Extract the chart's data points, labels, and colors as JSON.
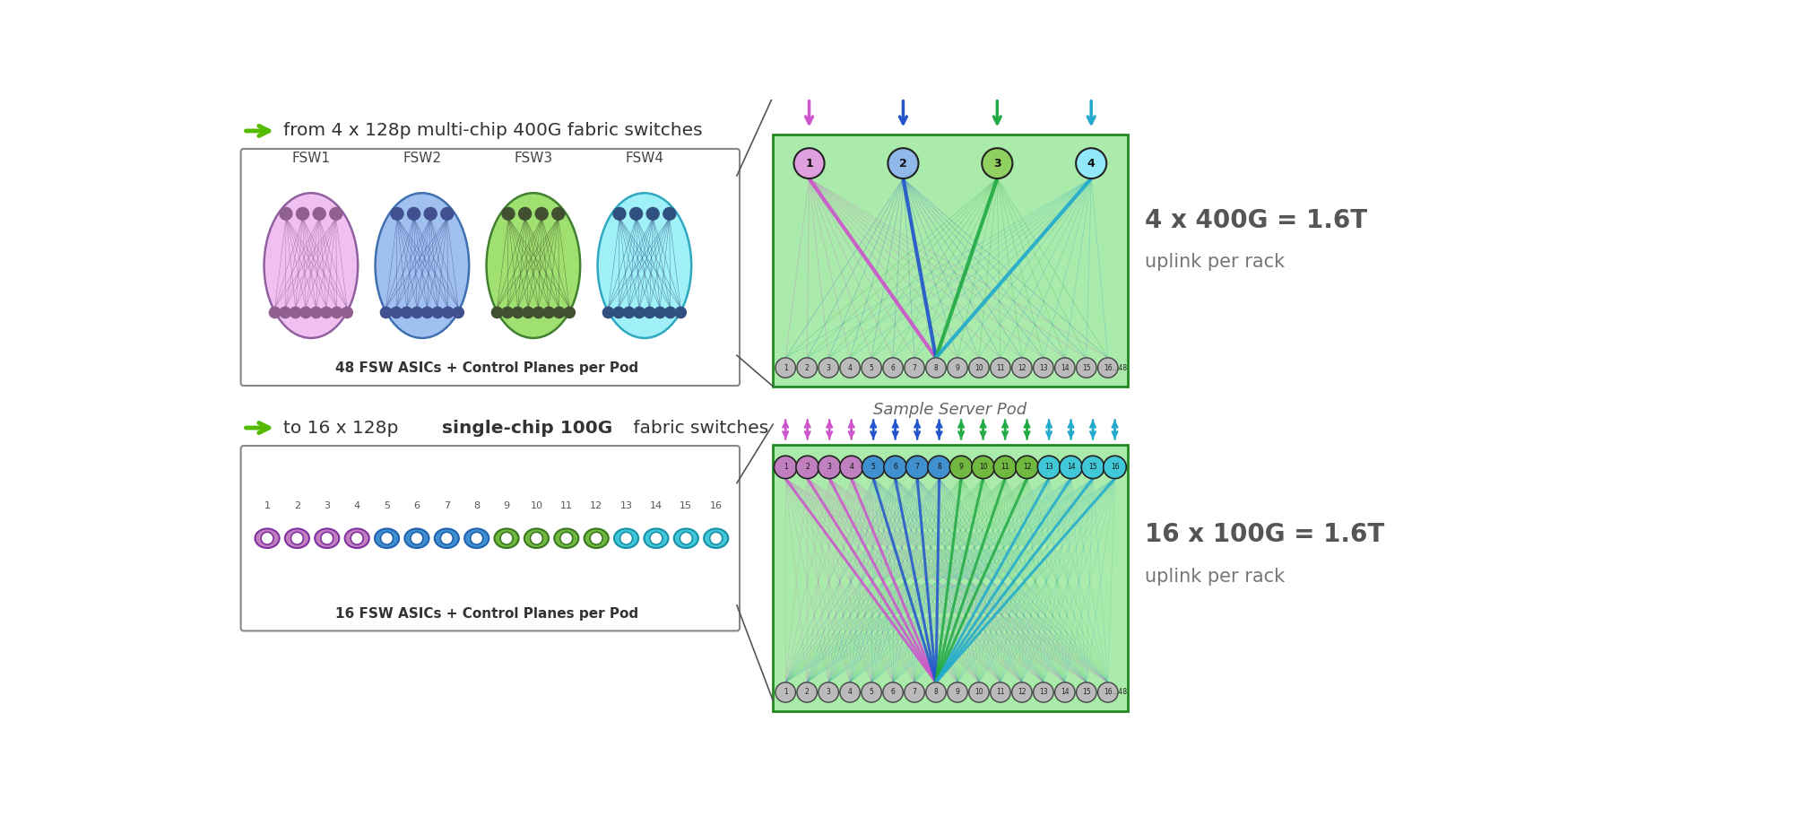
{
  "bg_color": "#ffffff",
  "green_pod_bg": "#aaeaaa",
  "green_pod_edge": "#228822",
  "title1_plain": "from 4 x 128p multi-chip 400G fabric switches",
  "title2_plain": "to 16 x 128p ",
  "title2_bold": "single-chip 100G",
  "title2_end": " fabric switches",
  "fsw_labels": [
    "FSW1",
    "FSW2",
    "FSW3",
    "FSW4"
  ],
  "fsw_fill": [
    "#f0c0f0",
    "#a0c0f0",
    "#a0e070",
    "#a0f0f8"
  ],
  "fsw_edge": [
    "#9060a0",
    "#4070b0",
    "#408030",
    "#30a8c0"
  ],
  "fsw_node_color": [
    "#906090",
    "#405090",
    "#405030",
    "#305080"
  ],
  "asic_label_top": "48 FSW ASICs + Control Planes per Pod",
  "asic_label_bot": "16 FSW ASICs + Control Planes per Pod",
  "sc_fill": [
    "#c080c0",
    "#c080c0",
    "#c080c0",
    "#c080c0",
    "#4090d0",
    "#4090d0",
    "#4090d0",
    "#4090d0",
    "#70b840",
    "#70b840",
    "#70b840",
    "#70b840",
    "#40c8d8",
    "#40c8d8",
    "#40c8d8",
    "#40c8d8"
  ],
  "sc_edge": [
    "#8030a0",
    "#8030a0",
    "#8030a0",
    "#8030a0",
    "#2060b0",
    "#2060b0",
    "#2060b0",
    "#2060b0",
    "#3a7820",
    "#3a7820",
    "#3a7820",
    "#3a7820",
    "#1890a8",
    "#1890a8",
    "#1890a8",
    "#1890a8"
  ],
  "uplink_colors_top": [
    "#cc55cc",
    "#2255cc",
    "#22aa44",
    "#22aacc"
  ],
  "uplink_colors_bot_groups": [
    "#cc55cc",
    "#2255cc",
    "#22aa44",
    "#22aacc"
  ],
  "pod_label": "Sample Server Pod",
  "label_400g_line1": "4 x 400G = 1.6T",
  "label_400g_line2": "uplink per rack",
  "label_100g_line1": "16 x 100G = 1.6T",
  "label_100g_line2": "uplink per rack",
  "arrow_green": "#55bb00",
  "connector_color": "#666666",
  "server_fill": "#cccccc",
  "server_edge": "#555555"
}
